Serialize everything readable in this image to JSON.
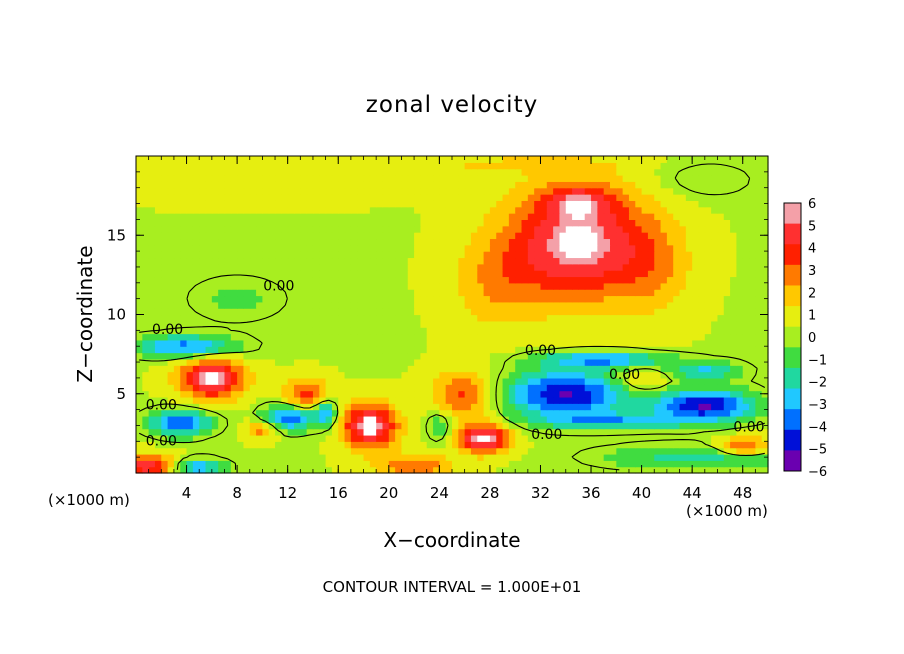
{
  "chart_data": {
    "type": "heatmap",
    "title": "zonal velocity",
    "xlabel": "X−coordinate",
    "ylabel": "Z−coordinate",
    "x_unit_left": "(×1000 m)",
    "x_unit_right": "(×1000 m)",
    "xlim": [
      0,
      50
    ],
    "ylim": [
      0,
      20
    ],
    "x_ticks": [
      4,
      8,
      12,
      16,
      20,
      24,
      28,
      32,
      36,
      40,
      44,
      48
    ],
    "y_ticks": [
      5,
      10,
      15
    ],
    "footer": "CONTOUR INTERVAL = 1.000E+01",
    "colorbar": {
      "labels": [
        "6",
        "5",
        "4",
        "3",
        "2",
        "1",
        "0",
        "−1",
        "−2",
        "−3",
        "−4",
        "−5",
        "−6"
      ],
      "range": [
        -6,
        6
      ],
      "colors": [
        "#f4a0a8",
        "#ff3030",
        "#ff2000",
        "#ff7a00",
        "#ffc800",
        "#e6ee10",
        "#a8ee20",
        "#40dc40",
        "#20d8a0",
        "#20c8ff",
        "#0070ff",
        "#0010d8",
        "#6a00b0"
      ]
    },
    "contour_labels": [
      "0.00",
      "0.00",
      "0.00",
      "0.00",
      "0.00",
      "0.00",
      "0.00",
      "0.00"
    ],
    "features": [
      {
        "x": 35,
        "z": 14.5,
        "sx": 5.5,
        "sz": 3.5,
        "v": 5.8
      },
      {
        "x": 35,
        "z": 17.2,
        "sx": 3,
        "sz": 1,
        "v": 2.5
      },
      {
        "x": 28.5,
        "z": 12,
        "sx": 3.5,
        "sz": 3,
        "v": 1.8
      },
      {
        "x": 41,
        "z": 13,
        "sx": 3,
        "sz": 3,
        "v": 1.6
      },
      {
        "x": 6,
        "z": 6,
        "sx": 2.5,
        "sz": 1.3,
        "v": 6
      },
      {
        "x": 18.5,
        "z": 3,
        "sx": 2.2,
        "sz": 1.4,
        "v": 6
      },
      {
        "x": 13.5,
        "z": 5,
        "sx": 1.8,
        "sz": 1.0,
        "v": 3.5
      },
      {
        "x": 26,
        "z": 5,
        "sx": 2.5,
        "sz": 1.5,
        "v": 3.5
      },
      {
        "x": 27.5,
        "z": 2.2,
        "sx": 2,
        "sz": 0.9,
        "v": 6
      },
      {
        "x": 1,
        "z": 0.5,
        "sx": 2,
        "sz": 0.7,
        "v": 5
      },
      {
        "x": 22,
        "z": 0.5,
        "sx": 3,
        "sz": 0.7,
        "v": 3
      },
      {
        "x": 48,
        "z": 1.7,
        "sx": 2,
        "sz": 0.6,
        "v": 4
      },
      {
        "x": 40,
        "z": 5.8,
        "sx": 2.2,
        "sz": 0.8,
        "v": 2
      },
      {
        "x": 10,
        "z": 2.8,
        "sx": 1.3,
        "sz": 0.6,
        "v": 3
      },
      {
        "x": 3.5,
        "z": 3.2,
        "sx": 2.5,
        "sz": 0.8,
        "v": -5
      },
      {
        "x": 4,
        "z": 8,
        "sx": 4,
        "sz": 0.7,
        "v": -4.5
      },
      {
        "x": 12,
        "z": 3.5,
        "sx": 2,
        "sz": 0.8,
        "v": -5
      },
      {
        "x": 15,
        "z": 3.8,
        "sx": 1,
        "sz": 0.9,
        "v": -4
      },
      {
        "x": 34,
        "z": 5,
        "sx": 5,
        "sz": 1.5,
        "v": -6
      },
      {
        "x": 45,
        "z": 4.3,
        "sx": 4,
        "sz": 1.0,
        "v": -6
      },
      {
        "x": 37,
        "z": 7.2,
        "sx": 5,
        "sz": 0.5,
        "v": -4
      },
      {
        "x": 45,
        "z": 6.5,
        "sx": 3,
        "sz": 0.6,
        "v": -3
      },
      {
        "x": 38,
        "z": 3.3,
        "sx": 6,
        "sz": 0.5,
        "v": -3
      },
      {
        "x": 45,
        "z": 1,
        "sx": 8,
        "sz": 0.8,
        "v": -2.5
      },
      {
        "x": 5,
        "z": 0.4,
        "sx": 2,
        "sz": 0.5,
        "v": -4
      },
      {
        "x": 24,
        "z": 3,
        "sx": 1,
        "sz": 1,
        "v": -2
      },
      {
        "x": 8,
        "z": 11,
        "sx": 4,
        "sz": 1.5,
        "v": -1.2
      },
      {
        "x": 10,
        "z": 18.5,
        "sx": 12,
        "sz": 1.2,
        "v": 1
      },
      {
        "x": 45,
        "z": 18.5,
        "sx": 4,
        "sz": 1.2,
        "v": -1
      },
      {
        "x": 30,
        "z": 19.5,
        "sx": 8,
        "sz": 0.5,
        "v": 1.2
      }
    ]
  }
}
